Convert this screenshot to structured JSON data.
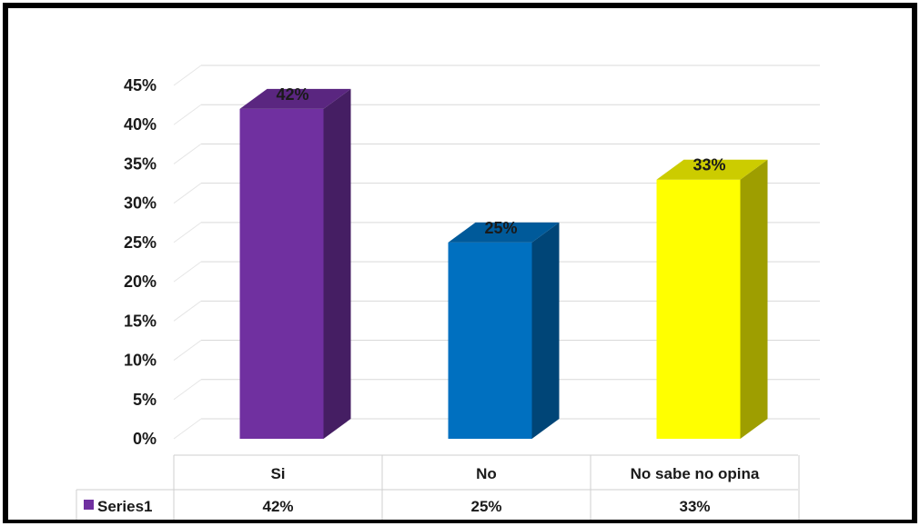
{
  "chart_data": {
    "type": "bar",
    "style": "3d-column",
    "categories": [
      "Si",
      "No",
      "No sabe no opina"
    ],
    "series": [
      {
        "name": "Series1",
        "values": [
          42,
          25,
          33
        ],
        "labels": [
          "42%",
          "25%",
          "33%"
        ]
      }
    ],
    "bar_colors": [
      "#7030a0",
      "#0070c0",
      "#ffff00"
    ],
    "ylim": [
      0,
      45
    ],
    "y_ticks": [
      "0%",
      "5%",
      "10%",
      "15%",
      "20%",
      "25%",
      "30%",
      "35%",
      "40%",
      "45%"
    ],
    "grid": true,
    "legend": "data-table",
    "data_table": {
      "legend_key": "Series1",
      "row": [
        "42%",
        "25%",
        "33%"
      ]
    }
  }
}
